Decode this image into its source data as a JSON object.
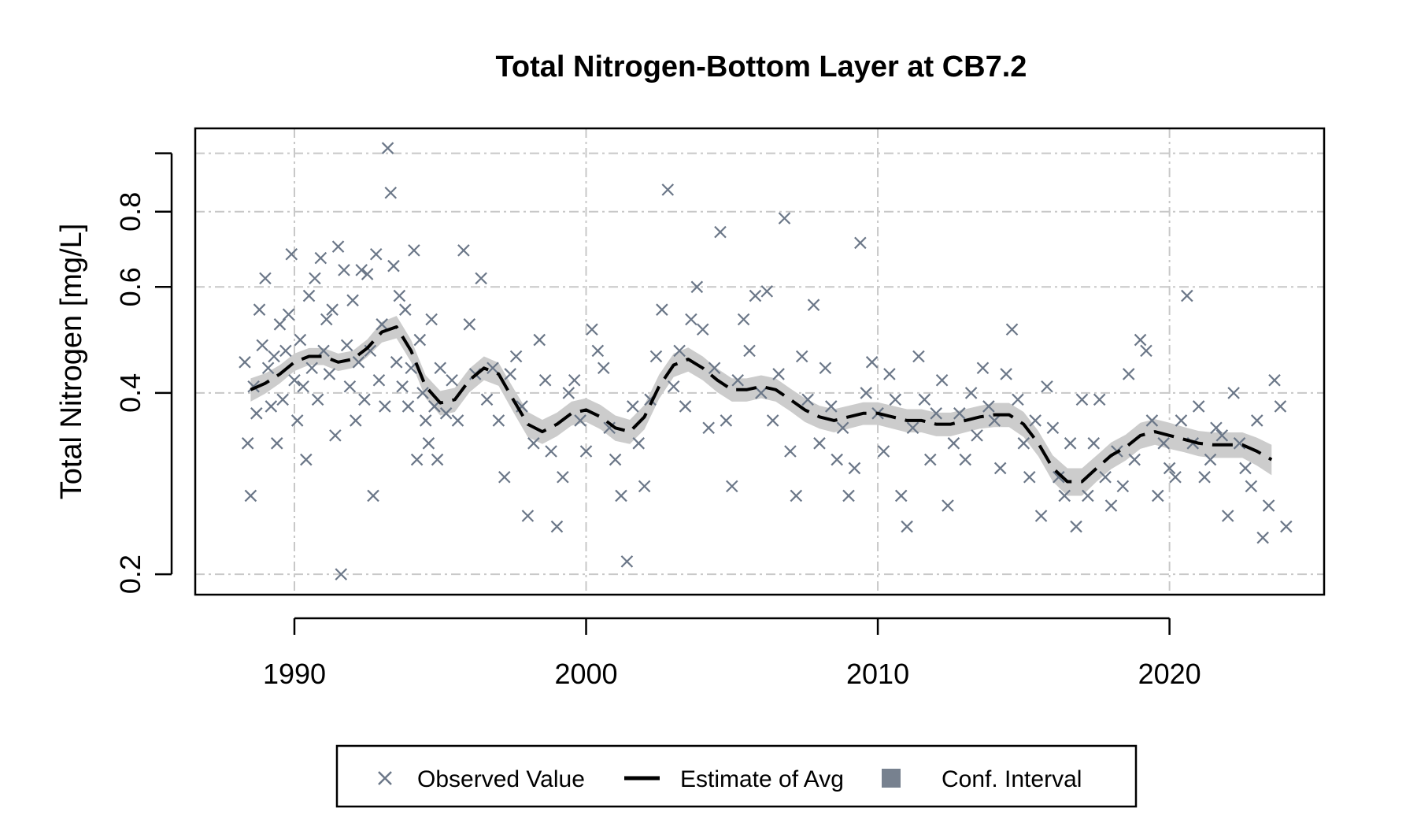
{
  "chart_data": {
    "type": "scatter",
    "title": "Total Nitrogen-Bottom Layer at CB7.2",
    "xlabel": "",
    "ylabel": "Total Nitrogen [mg/L]",
    "y_scale": "log",
    "xlim": [
      1986.6,
      2025.3
    ],
    "ylim": [
      0.185,
      1.1
    ],
    "x_ticks": [
      1990,
      2000,
      2010,
      2020
    ],
    "x_tick_labels": [
      "1990",
      "2000",
      "2010",
      "2020"
    ],
    "y_ticks": [
      0.2,
      0.4,
      0.6,
      0.8
    ],
    "y_tick_labels": [
      "0.2",
      "0.4",
      "0.6",
      "0.8"
    ],
    "y_gridlines": [
      0.2,
      0.4,
      0.6,
      0.8,
      1.0
    ],
    "grid": true,
    "legend_position": "bottom",
    "colors": {
      "observed": "#6b7788",
      "estimate": "#000000",
      "ci": "#cccccc",
      "ci_legend": "#77818f"
    },
    "series": [
      {
        "name": "Observed Value",
        "marker": "x",
        "points": [
          [
            1988.3,
            0.45
          ],
          [
            1988.4,
            0.33
          ],
          [
            1988.5,
            0.27
          ],
          [
            1988.6,
            0.41
          ],
          [
            1988.7,
            0.37
          ],
          [
            1988.8,
            0.55
          ],
          [
            1988.9,
            0.48
          ],
          [
            1989.0,
            0.62
          ],
          [
            1989.1,
            0.44
          ],
          [
            1989.2,
            0.38
          ],
          [
            1989.3,
            0.46
          ],
          [
            1989.4,
            0.33
          ],
          [
            1989.5,
            0.52
          ],
          [
            1989.6,
            0.39
          ],
          [
            1989.7,
            0.47
          ],
          [
            1989.8,
            0.54
          ],
          [
            1989.9,
            0.68
          ],
          [
            1990.0,
            0.42
          ],
          [
            1990.1,
            0.36
          ],
          [
            1990.2,
            0.49
          ],
          [
            1990.3,
            0.41
          ],
          [
            1990.4,
            0.31
          ],
          [
            1990.5,
            0.58
          ],
          [
            1990.6,
            0.44
          ],
          [
            1990.7,
            0.62
          ],
          [
            1990.8,
            0.39
          ],
          [
            1990.9,
            0.67
          ],
          [
            1991.0,
            0.47
          ],
          [
            1991.1,
            0.53
          ],
          [
            1991.2,
            0.43
          ],
          [
            1991.3,
            0.55
          ],
          [
            1991.4,
            0.34
          ],
          [
            1991.5,
            0.7
          ],
          [
            1991.6,
            0.2
          ],
          [
            1991.7,
            0.64
          ],
          [
            1991.8,
            0.48
          ],
          [
            1991.9,
            0.41
          ],
          [
            1992.0,
            0.57
          ],
          [
            1992.1,
            0.36
          ],
          [
            1992.2,
            0.45
          ],
          [
            1992.3,
            0.64
          ],
          [
            1992.4,
            0.39
          ],
          [
            1992.5,
            0.63
          ],
          [
            1992.6,
            0.47
          ],
          [
            1992.7,
            0.27
          ],
          [
            1992.8,
            0.68
          ],
          [
            1992.9,
            0.42
          ],
          [
            1993.0,
            0.52
          ],
          [
            1993.1,
            0.38
          ],
          [
            1993.2,
            1.02
          ],
          [
            1993.3,
            0.86
          ],
          [
            1993.4,
            0.65
          ],
          [
            1993.5,
            0.45
          ],
          [
            1993.6,
            0.58
          ],
          [
            1993.7,
            0.41
          ],
          [
            1993.8,
            0.55
          ],
          [
            1993.9,
            0.38
          ],
          [
            1994.0,
            0.44
          ],
          [
            1994.1,
            0.69
          ],
          [
            1994.2,
            0.31
          ],
          [
            1994.3,
            0.49
          ],
          [
            1994.4,
            0.4
          ],
          [
            1994.5,
            0.36
          ],
          [
            1994.6,
            0.33
          ],
          [
            1994.7,
            0.53
          ],
          [
            1994.8,
            0.38
          ],
          [
            1994.9,
            0.31
          ],
          [
            1995.0,
            0.44
          ],
          [
            1995.2,
            0.37
          ],
          [
            1995.4,
            0.42
          ],
          [
            1995.6,
            0.36
          ],
          [
            1995.8,
            0.69
          ],
          [
            1996.0,
            0.52
          ],
          [
            1996.2,
            0.43
          ],
          [
            1996.4,
            0.62
          ],
          [
            1996.6,
            0.39
          ],
          [
            1996.8,
            0.44
          ],
          [
            1997.0,
            0.36
          ],
          [
            1997.2,
            0.29
          ],
          [
            1997.4,
            0.43
          ],
          [
            1997.6,
            0.46
          ],
          [
            1997.8,
            0.38
          ],
          [
            1998.0,
            0.25
          ],
          [
            1998.2,
            0.33
          ],
          [
            1998.4,
            0.49
          ],
          [
            1998.6,
            0.42
          ],
          [
            1998.8,
            0.32
          ],
          [
            1999.0,
            0.24
          ],
          [
            1999.2,
            0.29
          ],
          [
            1999.4,
            0.4
          ],
          [
            1999.6,
            0.42
          ],
          [
            1999.8,
            0.36
          ],
          [
            2000.0,
            0.32
          ],
          [
            2000.2,
            0.51
          ],
          [
            2000.4,
            0.47
          ],
          [
            2000.6,
            0.44
          ],
          [
            2000.8,
            0.35
          ],
          [
            2001.0,
            0.31
          ],
          [
            2001.2,
            0.27
          ],
          [
            2001.4,
            0.21
          ],
          [
            2001.6,
            0.38
          ],
          [
            2001.8,
            0.33
          ],
          [
            2002.0,
            0.28
          ],
          [
            2002.2,
            0.39
          ],
          [
            2002.4,
            0.46
          ],
          [
            2002.6,
            0.55
          ],
          [
            2002.8,
            0.87
          ],
          [
            2003.0,
            0.41
          ],
          [
            2003.2,
            0.47
          ],
          [
            2003.4,
            0.38
          ],
          [
            2003.6,
            0.53
          ],
          [
            2003.8,
            0.6
          ],
          [
            2004.0,
            0.51
          ],
          [
            2004.2,
            0.35
          ],
          [
            2004.4,
            0.44
          ],
          [
            2004.6,
            0.74
          ],
          [
            2004.8,
            0.36
          ],
          [
            2005.0,
            0.28
          ],
          [
            2005.2,
            0.42
          ],
          [
            2005.4,
            0.53
          ],
          [
            2005.6,
            0.47
          ],
          [
            2005.8,
            0.58
          ],
          [
            2006.0,
            0.4
          ],
          [
            2006.2,
            0.59
          ],
          [
            2006.4,
            0.36
          ],
          [
            2006.6,
            0.43
          ],
          [
            2006.8,
            0.78
          ],
          [
            2007.0,
            0.32
          ],
          [
            2007.2,
            0.27
          ],
          [
            2007.4,
            0.46
          ],
          [
            2007.6,
            0.39
          ],
          [
            2007.8,
            0.56
          ],
          [
            2008.0,
            0.33
          ],
          [
            2008.2,
            0.44
          ],
          [
            2008.4,
            0.38
          ],
          [
            2008.6,
            0.31
          ],
          [
            2008.8,
            0.35
          ],
          [
            2009.0,
            0.27
          ],
          [
            2009.2,
            0.3
          ],
          [
            2009.4,
            0.71
          ],
          [
            2009.6,
            0.4
          ],
          [
            2009.8,
            0.45
          ],
          [
            2010.0,
            0.37
          ],
          [
            2010.2,
            0.32
          ],
          [
            2010.4,
            0.43
          ],
          [
            2010.6,
            0.39
          ],
          [
            2010.8,
            0.27
          ],
          [
            2011.0,
            0.24
          ],
          [
            2011.2,
            0.35
          ],
          [
            2011.4,
            0.46
          ],
          [
            2011.6,
            0.39
          ],
          [
            2011.8,
            0.31
          ],
          [
            2012.0,
            0.37
          ],
          [
            2012.2,
            0.42
          ],
          [
            2012.4,
            0.26
          ],
          [
            2012.6,
            0.33
          ],
          [
            2012.8,
            0.37
          ],
          [
            2013.0,
            0.31
          ],
          [
            2013.2,
            0.4
          ],
          [
            2013.4,
            0.34
          ],
          [
            2013.6,
            0.44
          ],
          [
            2013.8,
            0.38
          ],
          [
            2014.0,
            0.36
          ],
          [
            2014.2,
            0.3
          ],
          [
            2014.4,
            0.43
          ],
          [
            2014.6,
            0.51
          ],
          [
            2014.8,
            0.39
          ],
          [
            2015.0,
            0.33
          ],
          [
            2015.2,
            0.29
          ],
          [
            2015.4,
            0.36
          ],
          [
            2015.6,
            0.25
          ],
          [
            2015.8,
            0.41
          ],
          [
            2016.0,
            0.35
          ],
          [
            2016.2,
            0.29
          ],
          [
            2016.4,
            0.27
          ],
          [
            2016.6,
            0.33
          ],
          [
            2016.8,
            0.24
          ],
          [
            2017.0,
            0.39
          ],
          [
            2017.2,
            0.27
          ],
          [
            2017.4,
            0.33
          ],
          [
            2017.6,
            0.39
          ],
          [
            2017.8,
            0.29
          ],
          [
            2018.0,
            0.26
          ],
          [
            2018.2,
            0.32
          ],
          [
            2018.4,
            0.28
          ],
          [
            2018.6,
            0.43
          ],
          [
            2018.8,
            0.31
          ],
          [
            2019.0,
            0.49
          ],
          [
            2019.2,
            0.47
          ],
          [
            2019.4,
            0.36
          ],
          [
            2019.6,
            0.27
          ],
          [
            2019.8,
            0.33
          ],
          [
            2020.0,
            0.3
          ],
          [
            2020.2,
            0.29
          ],
          [
            2020.4,
            0.36
          ],
          [
            2020.6,
            0.58
          ],
          [
            2020.8,
            0.33
          ],
          [
            2021.0,
            0.38
          ],
          [
            2021.2,
            0.29
          ],
          [
            2021.4,
            0.31
          ],
          [
            2021.6,
            0.35
          ],
          [
            2021.8,
            0.34
          ],
          [
            2022.0,
            0.25
          ],
          [
            2022.2,
            0.4
          ],
          [
            2022.4,
            0.33
          ],
          [
            2022.6,
            0.3
          ],
          [
            2022.8,
            0.28
          ],
          [
            2023.0,
            0.36
          ],
          [
            2023.2,
            0.23
          ],
          [
            2023.4,
            0.26
          ],
          [
            2023.6,
            0.42
          ],
          [
            2023.8,
            0.38
          ],
          [
            2024.0,
            0.24
          ]
        ]
      },
      {
        "name": "Estimate of Avg",
        "style": "dashed",
        "x": [
          1988.5,
          1989.0,
          1989.5,
          1990.0,
          1990.5,
          1991.0,
          1991.5,
          1992.0,
          1992.5,
          1993.0,
          1993.5,
          1994.0,
          1994.5,
          1995.0,
          1995.5,
          1996.0,
          1996.5,
          1997.0,
          1997.5,
          1998.0,
          1998.5,
          1999.0,
          1999.5,
          2000.0,
          2000.5,
          2001.0,
          2001.5,
          2002.0,
          2002.5,
          2003.0,
          2003.5,
          2004.0,
          2004.5,
          2005.0,
          2005.5,
          2006.0,
          2006.5,
          2007.0,
          2007.5,
          2008.0,
          2008.5,
          2009.0,
          2009.5,
          2010.0,
          2010.5,
          2011.0,
          2011.5,
          2012.0,
          2012.5,
          2013.0,
          2013.5,
          2014.0,
          2014.5,
          2015.0,
          2015.5,
          2016.0,
          2016.5,
          2017.0,
          2017.5,
          2018.0,
          2018.5,
          2019.0,
          2019.5,
          2020.0,
          2020.5,
          2021.0,
          2021.5,
          2022.0,
          2022.5,
          2023.0,
          2023.5
        ],
        "y": [
          0.405,
          0.415,
          0.43,
          0.45,
          0.46,
          0.46,
          0.45,
          0.455,
          0.475,
          0.505,
          0.515,
          0.47,
          0.41,
          0.385,
          0.39,
          0.42,
          0.44,
          0.43,
          0.39,
          0.355,
          0.345,
          0.355,
          0.37,
          0.375,
          0.365,
          0.35,
          0.345,
          0.365,
          0.41,
          0.445,
          0.455,
          0.44,
          0.42,
          0.405,
          0.405,
          0.41,
          0.405,
          0.39,
          0.375,
          0.365,
          0.36,
          0.365,
          0.37,
          0.37,
          0.365,
          0.36,
          0.36,
          0.355,
          0.355,
          0.36,
          0.365,
          0.368,
          0.368,
          0.355,
          0.33,
          0.3,
          0.285,
          0.285,
          0.3,
          0.315,
          0.325,
          0.34,
          0.345,
          0.34,
          0.335,
          0.33,
          0.328,
          0.328,
          0.328,
          0.32,
          0.31
        ],
        "ci_halfwidth": [
          0.018,
          0.016,
          0.015,
          0.015,
          0.015,
          0.015,
          0.015,
          0.015,
          0.016,
          0.02,
          0.022,
          0.02,
          0.018,
          0.018,
          0.018,
          0.019,
          0.02,
          0.019,
          0.018,
          0.017,
          0.016,
          0.016,
          0.017,
          0.017,
          0.017,
          0.017,
          0.016,
          0.017,
          0.019,
          0.02,
          0.021,
          0.02,
          0.019,
          0.018,
          0.018,
          0.018,
          0.018,
          0.017,
          0.017,
          0.016,
          0.016,
          0.016,
          0.016,
          0.016,
          0.016,
          0.016,
          0.016,
          0.016,
          0.016,
          0.016,
          0.016,
          0.017,
          0.017,
          0.017,
          0.016,
          0.015,
          0.015,
          0.015,
          0.015,
          0.016,
          0.016,
          0.017,
          0.017,
          0.017,
          0.016,
          0.016,
          0.016,
          0.016,
          0.016,
          0.017,
          0.018
        ]
      },
      {
        "name": "Conf. Interval",
        "style": "band"
      }
    ]
  },
  "legend": {
    "observed_label": "Observed Value",
    "estimate_label": "Estimate of Avg",
    "ci_label": "Conf. Interval"
  }
}
